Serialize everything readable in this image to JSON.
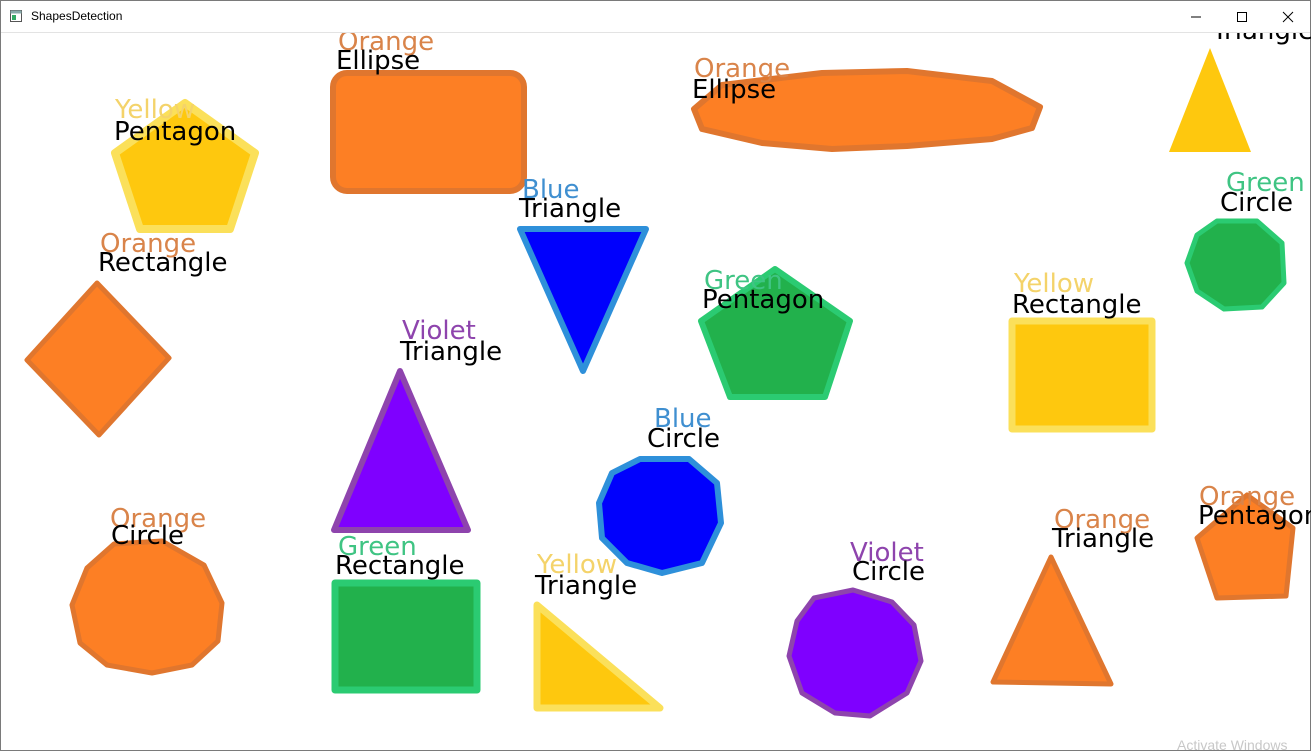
{
  "window": {
    "title": "ShapesDetection",
    "controls": {
      "minimize": "minimize",
      "maximize": "maximize",
      "close": "close"
    }
  },
  "colors": {
    "orange": "#fd7f24",
    "orange_outline": "#e0762e",
    "yellow": "#fec80e",
    "yellow_outline": "#fbe05a",
    "blue": "#0000fd",
    "blue_outline": "#2e90da",
    "green": "#22b14c",
    "green_outline": "#2bcb72",
    "violet": "#7f00ff",
    "violet_outline": "#8e44ad",
    "text_black": "#000000",
    "label_orange": "#d9844a",
    "label_yellow": "#f4d36a",
    "label_blue": "#3f8fd0",
    "label_green": "#3fc483",
    "label_violet": "#8e44ad"
  },
  "labels": [
    {
      "id": "l1",
      "color_word": "Yellow",
      "shape_word": "Pentagon"
    },
    {
      "id": "l2",
      "color_word": "Orange",
      "shape_word": "Ellipse"
    },
    {
      "id": "l3",
      "color_word": "Orange",
      "shape_word": "Ellipse"
    },
    {
      "id": "l4",
      "color_word": "",
      "shape_word": "Triangle"
    },
    {
      "id": "l5",
      "color_word": "Blue",
      "shape_word": "Triangle"
    },
    {
      "id": "l6",
      "color_word": "Orange",
      "shape_word": "Rectangle"
    },
    {
      "id": "l7",
      "color_word": "Green",
      "shape_word": "Circle"
    },
    {
      "id": "l8",
      "color_word": "Green",
      "shape_word": "Pentagon"
    },
    {
      "id": "l9",
      "color_word": "Yellow",
      "shape_word": "Rectangle"
    },
    {
      "id": "l10",
      "color_word": "Violet",
      "shape_word": "Triangle"
    },
    {
      "id": "l11",
      "color_word": "Blue",
      "shape_word": "Circle"
    },
    {
      "id": "l12",
      "color_word": "Orange",
      "shape_word": "Circle"
    },
    {
      "id": "l13",
      "color_word": "Green",
      "shape_word": "Rectangle"
    },
    {
      "id": "l14",
      "color_word": "Yellow",
      "shape_word": "Triangle"
    },
    {
      "id": "l15",
      "color_word": "Violet",
      "shape_word": "Circle"
    },
    {
      "id": "l16",
      "color_word": "Orange",
      "shape_word": "Triangle"
    },
    {
      "id": "l17",
      "color_word": "Orange",
      "shape_word": "Pentagon"
    }
  ],
  "watermark": "Activate Windows"
}
